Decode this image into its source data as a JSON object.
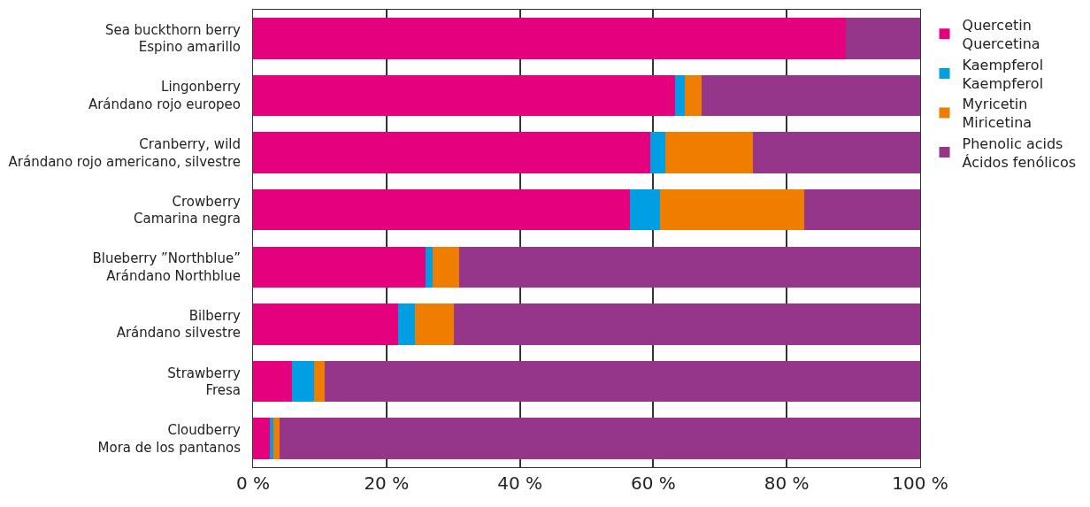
{
  "chart_data": {
    "type": "bar",
    "orientation": "horizontal",
    "stacked": true,
    "categories": [
      "Sea buckthorn berry\nEspino amarillo",
      "Lingonberry\nArándano rojo europeo",
      "Cranberry, wild\nArándano rojo americano, silvestre",
      "Crowberry\nCamarina negra",
      "Blueberry ”Northblue”\nArándano Northblue",
      "Bilberry\nArándano silvestre",
      "Strawberry\nFresa",
      "Cloudberry\nMora de los pantanos"
    ],
    "series": [
      {
        "name": "Quercetin\nQuercetina",
        "color": "#e5007e",
        "values": [
          88.9,
          63.3,
          59.6,
          56.5,
          25.9,
          21.8,
          5.8,
          2.5
        ]
      },
      {
        "name": "Kaempferol\nKaempferol",
        "color": "#009fe3",
        "values": [
          0,
          1.4,
          2.2,
          4.5,
          1.0,
          2.5,
          3.3,
          0.5
        ]
      },
      {
        "name": "Myricetin\nMiricetina",
        "color": "#ef7d00",
        "values": [
          0,
          2.6,
          13.1,
          21.6,
          4.0,
          5.8,
          1.7,
          1.0
        ]
      },
      {
        "name": "Phenolic acids\nÁcidos fenólicos",
        "color": "#95368a",
        "values": [
          11.1,
          32.7,
          25.1,
          17.4,
          69.1,
          69.9,
          89.2,
          96.0
        ]
      }
    ],
    "xlim": [
      0,
      100
    ],
    "xticks": [
      {
        "value": 0,
        "label": "0 %"
      },
      {
        "value": 20,
        "label": "20 %"
      },
      {
        "value": 40,
        "label": "40 %"
      },
      {
        "value": 60,
        "label": "60 %"
      },
      {
        "value": 80,
        "label": "80 %"
      },
      {
        "value": 100,
        "label": "100 %"
      }
    ],
    "grid": "x",
    "legend": "top right"
  }
}
